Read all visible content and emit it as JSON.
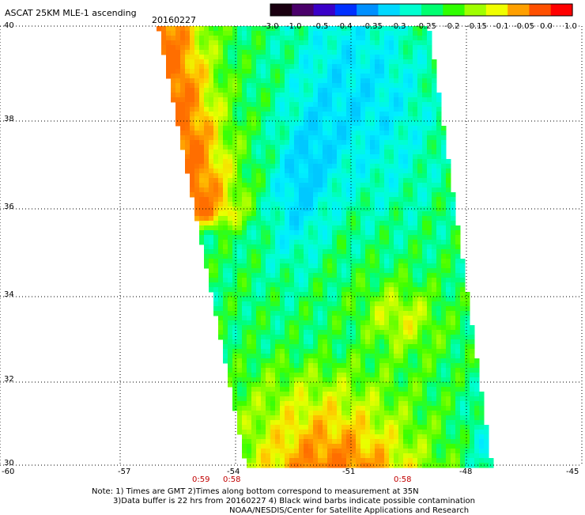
{
  "header": {
    "title": "ASCAT 25KM MLE-1 ascending",
    "date": "20160227"
  },
  "colorbar": {
    "labels": [
      "-3.0",
      "-1.0",
      "-0.5",
      "-0.4",
      "-0.35",
      "-0.3",
      "-0.25",
      "-0.2",
      "-0.15",
      "-0.1",
      "-0.05",
      "0.0",
      "1.0"
    ],
    "colors": [
      "#1a0010",
      "#4a006a",
      "#3a00c8",
      "#0030ff",
      "#0090ff",
      "#00d8ff",
      "#00ffd0",
      "#00ff70",
      "#30ff00",
      "#a0ff00",
      "#f0ff00",
      "#ffa000",
      "#ff5000",
      "#ff0000"
    ]
  },
  "map": {
    "lon_ticks": [
      "-60",
      "-57",
      "-54",
      "-51",
      "-48",
      "-45"
    ],
    "lat_ticks": [
      "40",
      "38",
      "36",
      "34",
      "32",
      "30"
    ],
    "time_labels": [
      "0:59",
      "0:58",
      "0:58"
    ]
  },
  "footer": {
    "line1": "Note: 1) Times are GMT 2)Times along bottom correspond to measurement at 35N",
    "line2": "3)Data buffer is 22 hrs from 20160227 4) Black wind barbs indicate possible contamination",
    "line3": "NOAA/NESDIS/Center for Satellite Applications and Research"
  }
}
